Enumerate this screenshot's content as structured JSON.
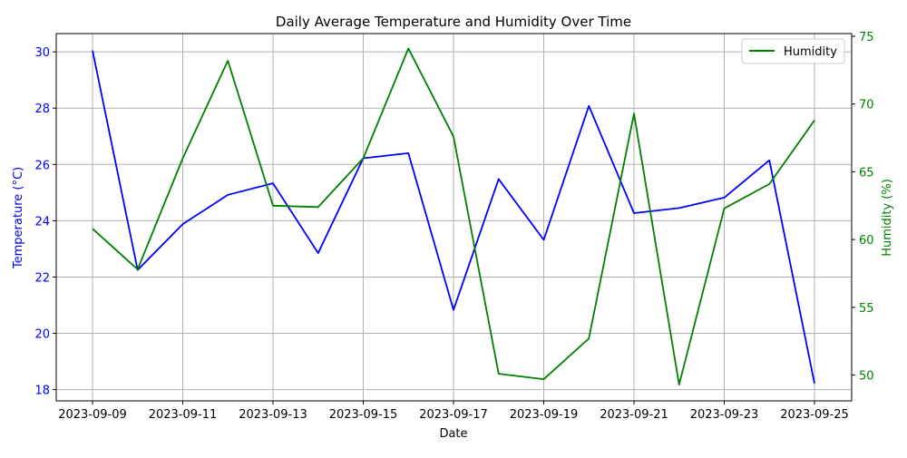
{
  "chart_data": {
    "type": "line",
    "title": "Daily Average Temperature and Humidity Over Time",
    "xlabel": "Date",
    "x": [
      "2023-09-09",
      "2023-09-10",
      "2023-09-11",
      "2023-09-12",
      "2023-09-13",
      "2023-09-14",
      "2023-09-15",
      "2023-09-16",
      "2023-09-17",
      "2023-09-18",
      "2023-09-19",
      "2023-09-20",
      "2023-09-21",
      "2023-09-22",
      "2023-09-23",
      "2023-09-24",
      "2023-09-25"
    ],
    "x_tick_labels": [
      "2023-09-09",
      "2023-09-11",
      "2023-09-13",
      "2023-09-15",
      "2023-09-17",
      "2023-09-19",
      "2023-09-21",
      "2023-09-23",
      "2023-09-25"
    ],
    "grid": true,
    "left_axis": {
      "label": "Temperature (°C)",
      "color": "#0000ff",
      "ylim": [
        17.6,
        30.65
      ],
      "ticks": [
        18,
        20,
        22,
        24,
        26,
        28,
        30
      ]
    },
    "right_axis": {
      "label": "Humidity (%)",
      "color": "#008000",
      "ylim": [
        48.1,
        75.2
      ],
      "ticks": [
        50,
        55,
        60,
        65,
        70,
        75
      ]
    },
    "series": [
      {
        "axis": "left",
        "color": "#0000ff",
        "values": [
          30.05,
          22.25,
          23.88,
          24.92,
          25.33,
          22.85,
          26.22,
          26.4,
          20.83,
          25.48,
          23.32,
          28.08,
          24.27,
          24.45,
          24.82,
          26.15,
          18.22
        ]
      },
      {
        "name": "Humidity",
        "axis": "right",
        "color": "#008000",
        "values": [
          60.8,
          57.8,
          66.0,
          73.2,
          62.5,
          62.4,
          66.0,
          74.1,
          67.6,
          50.1,
          49.7,
          52.7,
          69.3,
          49.3,
          62.3,
          64.1,
          68.8
        ]
      }
    ],
    "legend": {
      "position": "top-right",
      "entries": [
        "Humidity"
      ]
    }
  }
}
